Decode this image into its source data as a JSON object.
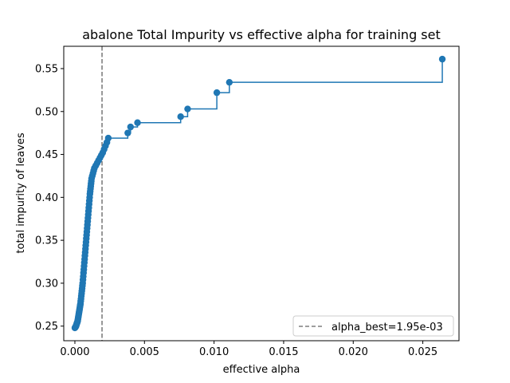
{
  "chart_data": {
    "type": "line",
    "title": "abalone Total Impurity vs effective alpha for training set",
    "xlabel": "effective alpha",
    "ylabel": "total impurity of leaves",
    "xlim": [
      -0.0008,
      0.0276
    ],
    "ylim": [
      0.233,
      0.576
    ],
    "xticks": [
      0.0,
      0.005,
      0.01,
      0.015,
      0.02,
      0.025
    ],
    "xtick_labels": [
      "0.000",
      "0.005",
      "0.010",
      "0.015",
      "0.020",
      "0.025"
    ],
    "yticks": [
      0.25,
      0.3,
      0.35,
      0.4,
      0.45,
      0.5,
      0.55
    ],
    "ytick_labels": [
      "0.25",
      "0.30",
      "0.35",
      "0.40",
      "0.45",
      "0.50",
      "0.55"
    ],
    "grid": false,
    "line_style": "steps-post",
    "series_color": "#1f77b4",
    "series": [
      {
        "x": [
          0.0,
          2e-05,
          4e-05,
          6e-05,
          8e-05,
          0.0001,
          0.00012,
          0.00014,
          0.00016,
          0.00018,
          0.0002,
          0.00022,
          0.00024,
          0.00026,
          0.00028,
          0.0003,
          0.00032,
          0.00034,
          0.00036,
          0.00038,
          0.0004,
          0.00042,
          0.00044,
          0.00046,
          0.00048,
          0.0005,
          0.00052,
          0.00054,
          0.00056,
          0.00058,
          0.0006,
          0.00062,
          0.00064,
          0.00066,
          0.00068,
          0.0007,
          0.00072,
          0.00074,
          0.00076,
          0.00078,
          0.0008,
          0.00082,
          0.00084,
          0.00086,
          0.00088,
          0.0009,
          0.00092,
          0.00094,
          0.00096,
          0.00098,
          0.001,
          0.00102,
          0.00104,
          0.00106,
          0.00108,
          0.0011,
          0.00112,
          0.00114,
          0.00116,
          0.00118,
          0.0012,
          0.00125,
          0.0013,
          0.00135,
          0.0014,
          0.0015,
          0.0016,
          0.0017,
          0.0018,
          0.0019,
          0.002,
          0.0021,
          0.0022,
          0.0023,
          0.0024,
          0.0038,
          0.004,
          0.0045,
          0.0076,
          0.0081,
          0.0102,
          0.0111,
          0.0264
        ],
        "y": [
          0.248,
          0.2485,
          0.249,
          0.2495,
          0.25,
          0.251,
          0.252,
          0.253,
          0.254,
          0.255,
          0.256,
          0.258,
          0.26,
          0.262,
          0.264,
          0.266,
          0.268,
          0.27,
          0.272,
          0.274,
          0.276,
          0.279,
          0.282,
          0.285,
          0.288,
          0.291,
          0.294,
          0.297,
          0.3,
          0.304,
          0.308,
          0.312,
          0.316,
          0.32,
          0.324,
          0.328,
          0.332,
          0.336,
          0.34,
          0.344,
          0.348,
          0.352,
          0.356,
          0.36,
          0.364,
          0.368,
          0.372,
          0.376,
          0.38,
          0.384,
          0.388,
          0.392,
          0.396,
          0.4,
          0.404,
          0.407,
          0.41,
          0.413,
          0.416,
          0.419,
          0.422,
          0.425,
          0.428,
          0.431,
          0.434,
          0.437,
          0.44,
          0.443,
          0.446,
          0.449,
          0.452,
          0.456,
          0.46,
          0.464,
          0.469,
          0.475,
          0.482,
          0.487,
          0.494,
          0.503,
          0.522,
          0.534,
          0.561
        ]
      }
    ],
    "vline": {
      "x": 0.00195,
      "color": "#7f7f7f",
      "style": "dashed",
      "legend_label": "alpha_best=1.95e-03"
    },
    "legend_placement": "lower-right"
  }
}
